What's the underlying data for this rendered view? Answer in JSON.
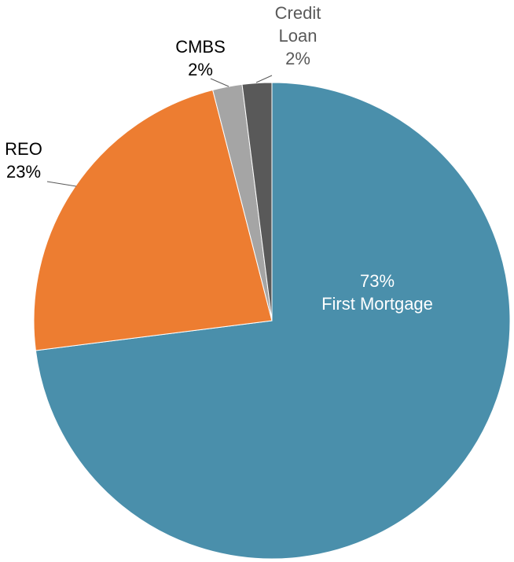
{
  "chart_data": {
    "type": "pie",
    "categories": [
      "First Mortgage",
      "REO",
      "CMBS",
      "Credit Loan"
    ],
    "values": [
      73,
      23,
      2,
      2
    ],
    "value_labels": [
      "73%",
      "23%",
      "2%",
      "2%"
    ],
    "colors": [
      "#4a8fab",
      "#ed7d31",
      "#a5a5a5",
      "#595959"
    ]
  }
}
